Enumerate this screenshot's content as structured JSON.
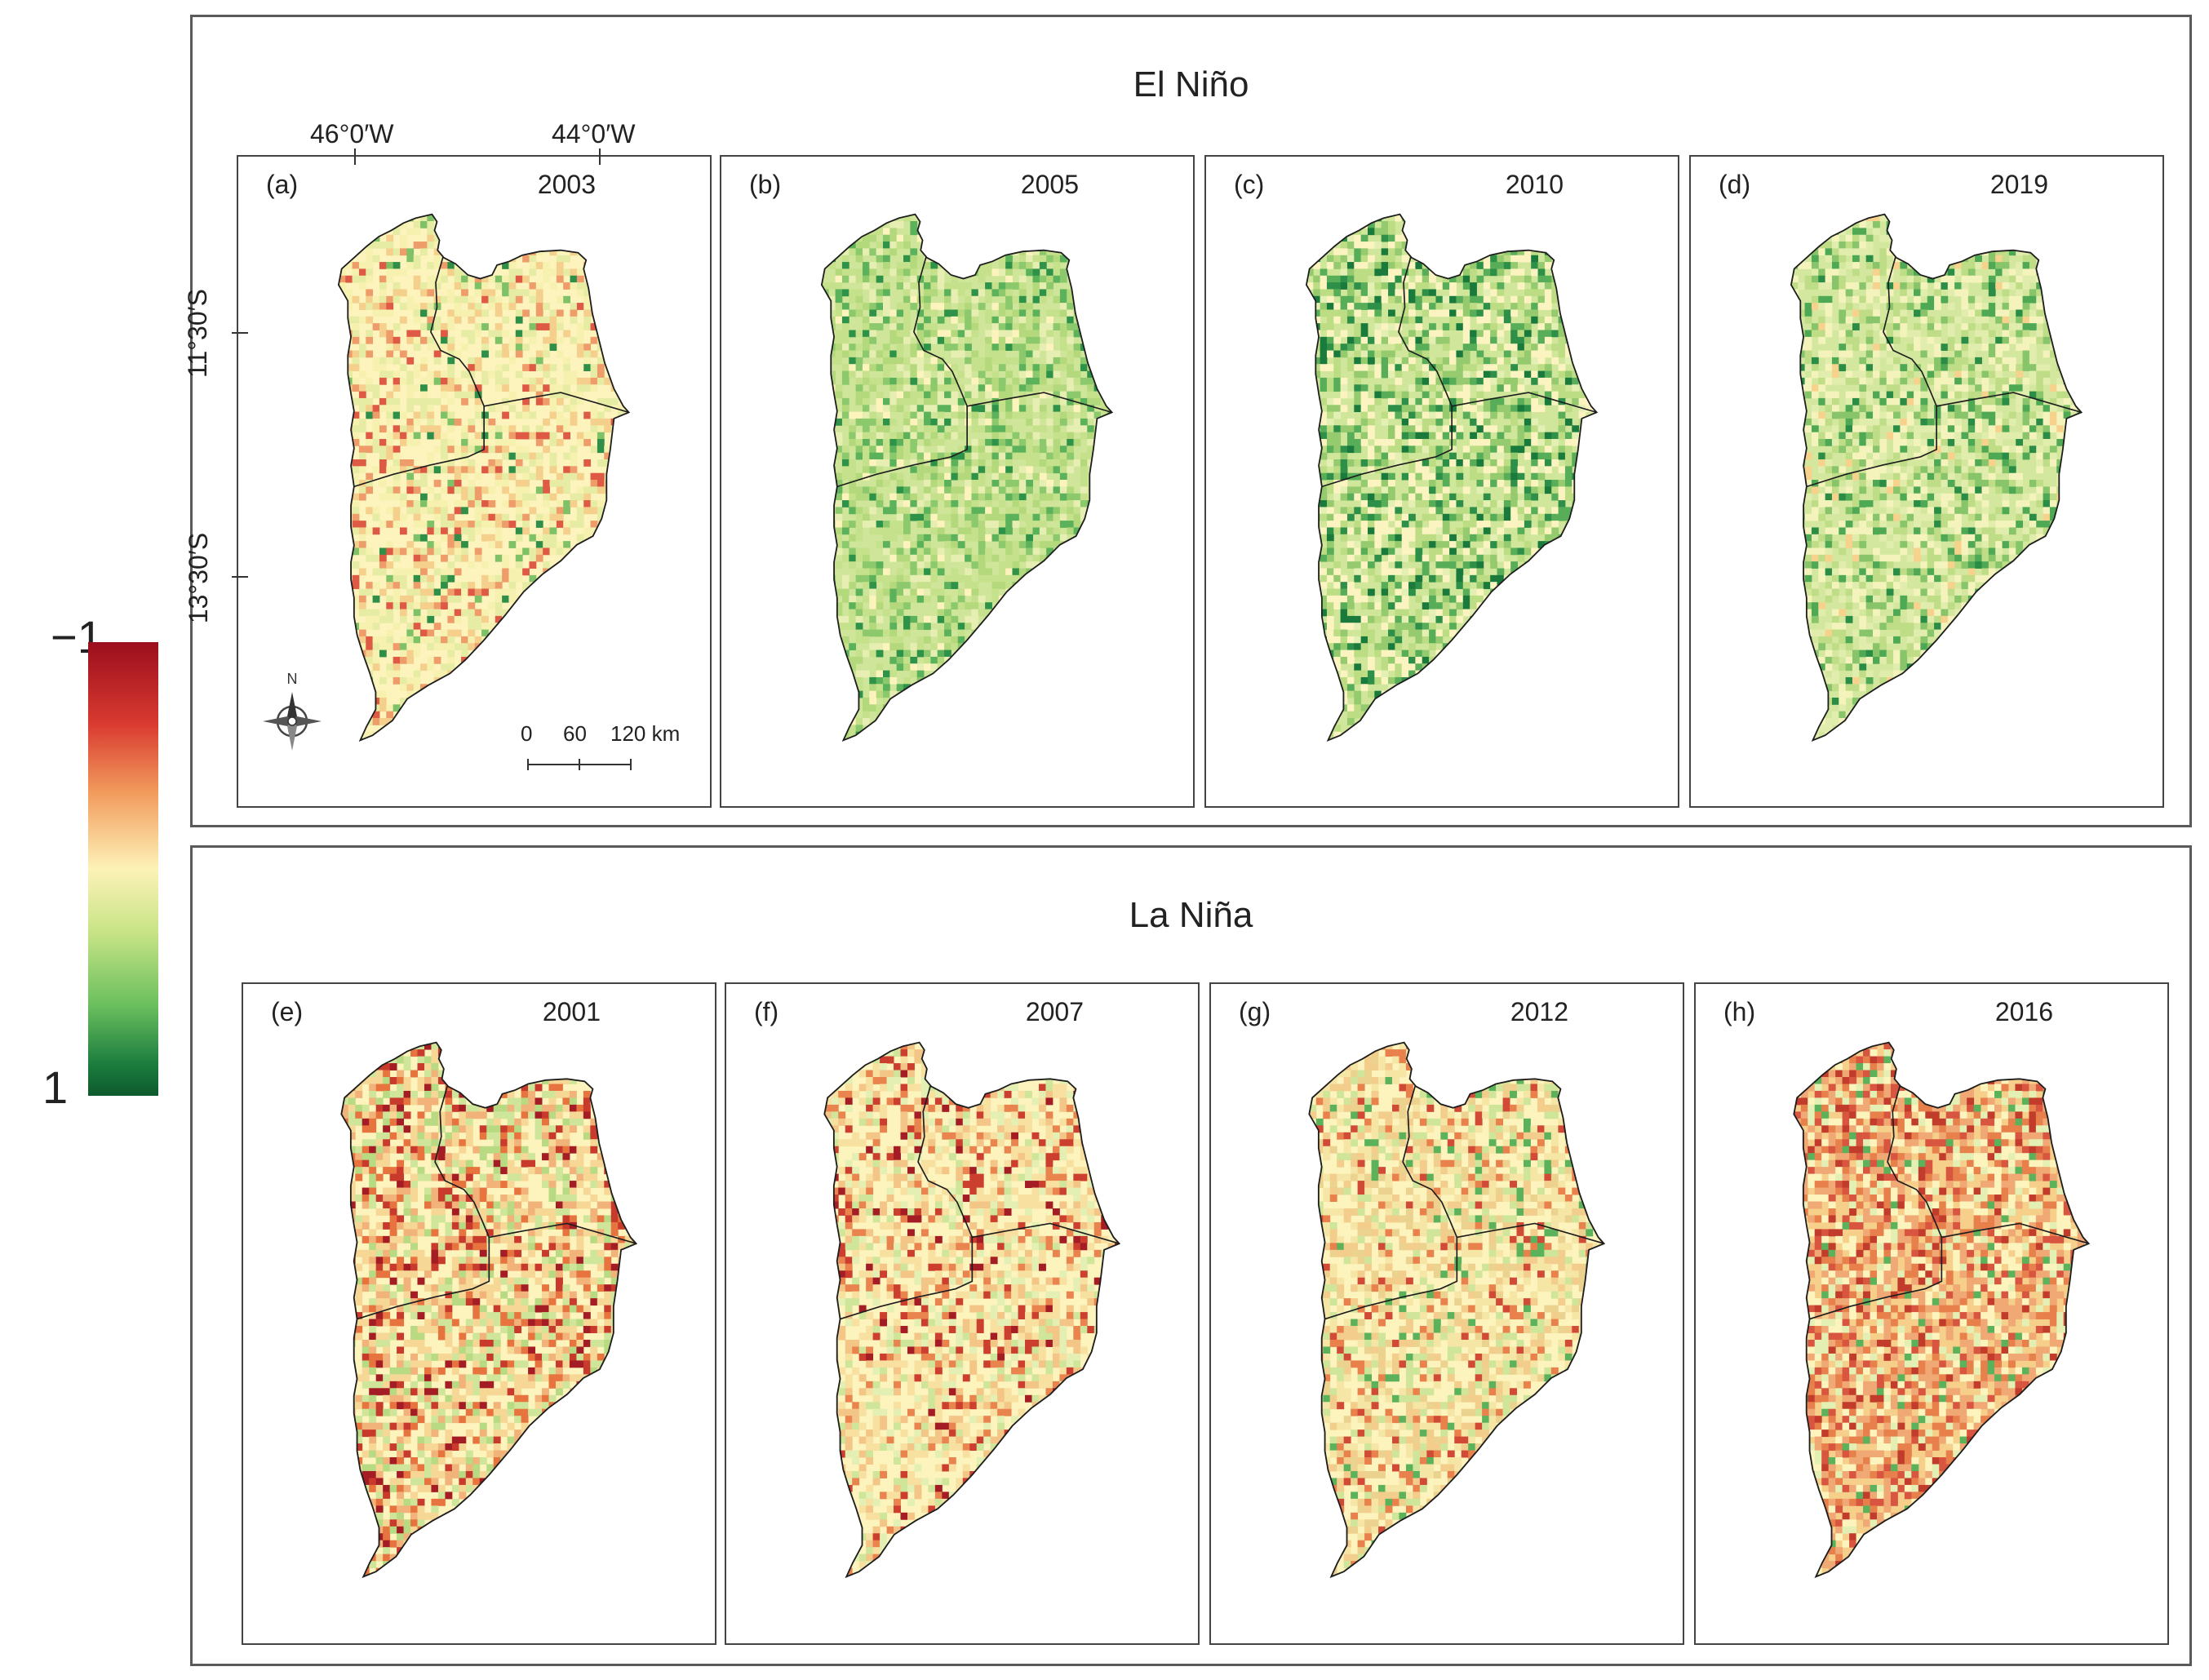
{
  "legend": {
    "max_label": "−1",
    "min_label": "1",
    "colors": [
      "#9b0e1d",
      "#d93a30",
      "#f29a5c",
      "#fdf2b8",
      "#c7e486",
      "#6bbf5e",
      "#0e5a2c"
    ]
  },
  "groups": [
    {
      "title": "El Niño",
      "panels": [
        {
          "letter": "(a)",
          "year": "2003",
          "palette": [
            "#fdf3bc",
            "#f7f1b0",
            "#e7eca4",
            "#f5cf8c",
            "#ee9c6a",
            "#de5a44",
            "#7fc166",
            "#2f8f48"
          ],
          "weights": [
            40,
            17,
            18,
            10,
            6,
            4,
            3,
            2
          ]
        },
        {
          "letter": "(b)",
          "year": "2005",
          "palette": [
            "#cfe69a",
            "#c6e18c",
            "#b4d97c",
            "#e6eeb2",
            "#8cc96c",
            "#5cb25a",
            "#2f9249",
            "#fdf3bc"
          ],
          "weights": [
            30,
            22,
            14,
            10,
            10,
            7,
            4,
            3
          ]
        },
        {
          "letter": "(c)",
          "year": "2010",
          "palette": [
            "#d0e79b",
            "#fbf4c0",
            "#bddd84",
            "#95cb6e",
            "#58ae58",
            "#2e9048",
            "#1a7a3c",
            "#e3efb3"
          ],
          "weights": [
            28,
            20,
            15,
            12,
            9,
            7,
            4,
            5
          ]
        },
        {
          "letter": "(d)",
          "year": "2019",
          "palette": [
            "#d3e89e",
            "#f3f3bb",
            "#bfdd86",
            "#e1edac",
            "#88c56a",
            "#4ea854",
            "#2a8c45",
            "#f6d28c"
          ],
          "weights": [
            30,
            18,
            15,
            14,
            9,
            7,
            4,
            3
          ]
        }
      ]
    },
    {
      "title": "La Niña",
      "panels": [
        {
          "letter": "(e)",
          "year": "2001",
          "palette": [
            "#fdf3bc",
            "#f7d796",
            "#f1b37a",
            "#e7743f",
            "#c83a2c",
            "#a41c24",
            "#cfe69a",
            "#b7da82"
          ],
          "weights": [
            30,
            18,
            12,
            9,
            7,
            4,
            12,
            8
          ]
        },
        {
          "letter": "(f)",
          "year": "2007",
          "palette": [
            "#fdf3bc",
            "#f7e0a0",
            "#f3c586",
            "#e9844e",
            "#cc3f2e",
            "#a41c24",
            "#e3efb3",
            "#cfe69a"
          ],
          "weights": [
            36,
            18,
            12,
            8,
            6,
            3,
            10,
            7
          ]
        },
        {
          "letter": "(g)",
          "year": "2012",
          "palette": [
            "#fdf3bc",
            "#f6e6a6",
            "#f3cd8c",
            "#ebd28f",
            "#e9814d",
            "#d04a36",
            "#cfe69a",
            "#5cb25a"
          ],
          "weights": [
            33,
            18,
            14,
            9,
            6,
            4,
            11,
            5
          ]
        },
        {
          "letter": "(h)",
          "year": "2016",
          "palette": [
            "#f6cf8a",
            "#f0a874",
            "#e8804c",
            "#d85540",
            "#c23c2c",
            "#fdf3bc",
            "#e3efb3",
            "#5cb25a"
          ],
          "weights": [
            22,
            20,
            14,
            10,
            7,
            14,
            10,
            3
          ]
        }
      ]
    }
  ],
  "coordinates": {
    "lon_1": "46°0′W",
    "lon_2": "44°0′W",
    "lat_1": "11°30′S",
    "lat_2": "13°30′S"
  },
  "compass": {
    "north": "N"
  },
  "scale_bar": {
    "tick_0": "0",
    "tick_1": "60",
    "tick_2": "120 km"
  }
}
